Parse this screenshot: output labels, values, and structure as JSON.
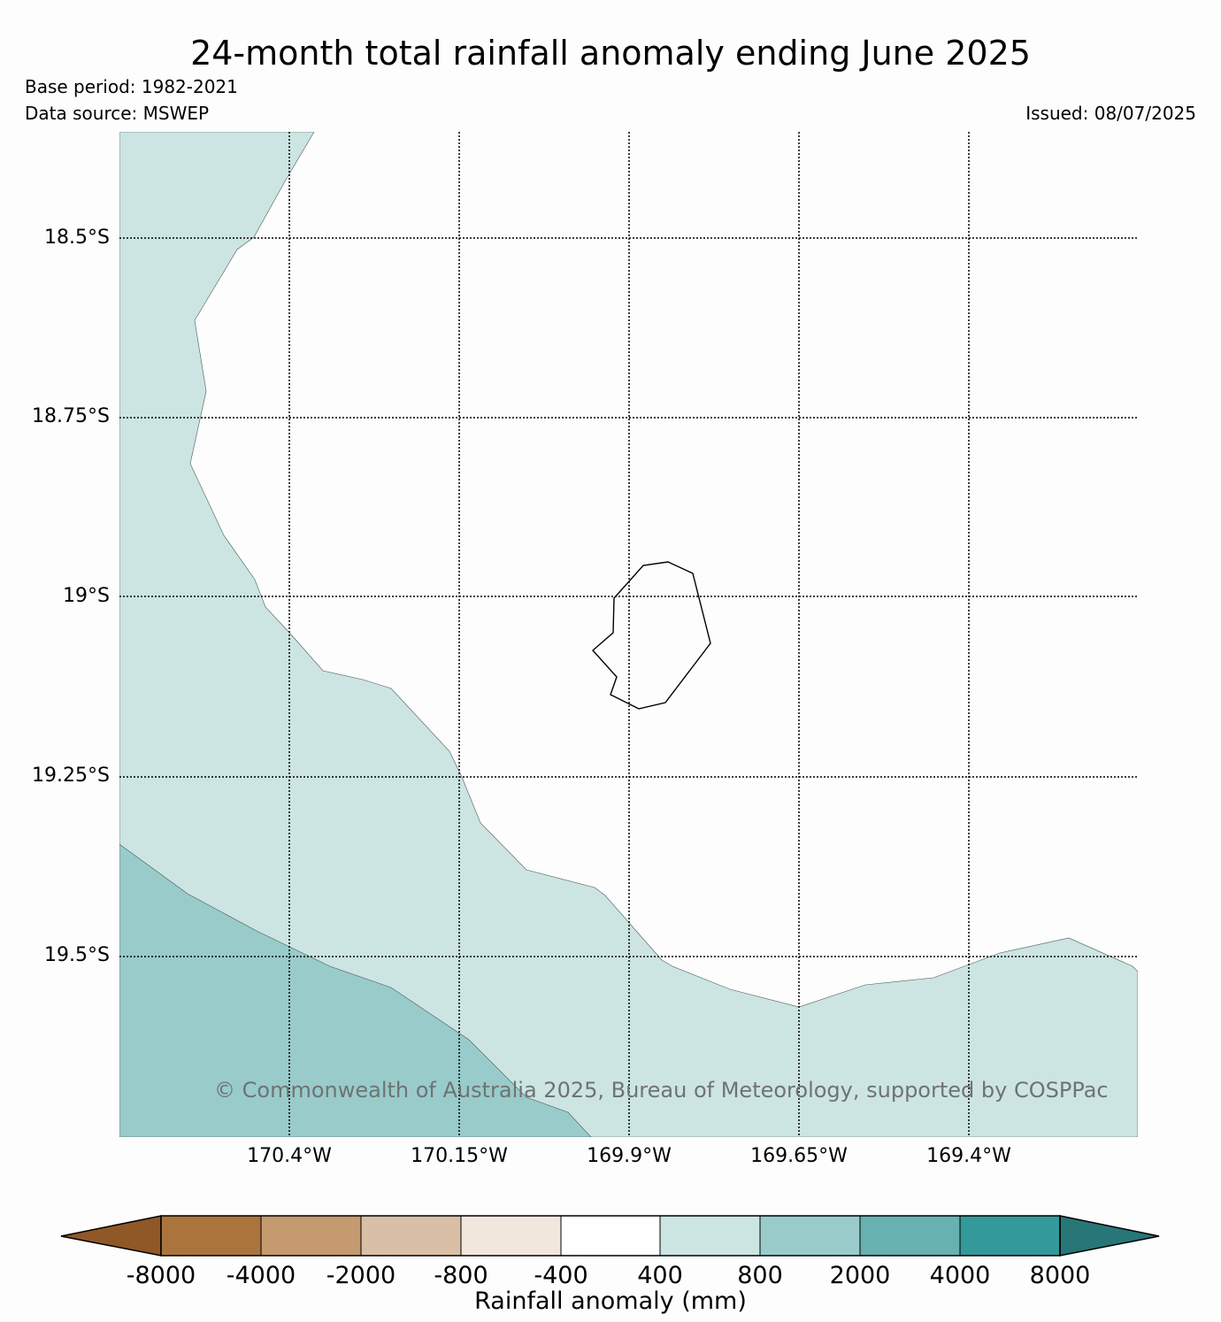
{
  "title": "24-month total rainfall anomaly ending June 2025",
  "base_period": "Base period: 1982-2021",
  "data_source": "Data source: MSWEP",
  "issued": "Issued: 08/07/2025",
  "copyright": "© Commonwealth of Australia 2025, Bureau of Meteorology, supported by COSPPac",
  "latitude_labels": [
    "18.5°S",
    "18.75°S",
    "19°S",
    "19.25°S",
    "19.5°S"
  ],
  "longitude_labels": [
    "170.4°W",
    "170.15°W",
    "169.9°W",
    "169.65°W",
    "169.4°W"
  ],
  "legend": {
    "label": "Rainfall anomaly (mm)",
    "ticks": [
      "-8000",
      "-4000",
      "-2000",
      "-800",
      "-400",
      "400",
      "800",
      "2000",
      "4000",
      "8000"
    ],
    "colors": [
      "#8f5826",
      "#ab743d",
      "#c49a6e",
      "#d9bfa6",
      "#f1e7dd",
      "#ffffff",
      "#cce5e3",
      "#99cbcb",
      "#67b1b0",
      "#33999a",
      "#287677"
    ]
  },
  "map_fills": {
    "band_400_800": "#cce5e3",
    "band_800_2000": "#99cbcb",
    "band_neg400_400": "#fdfdfd"
  }
}
